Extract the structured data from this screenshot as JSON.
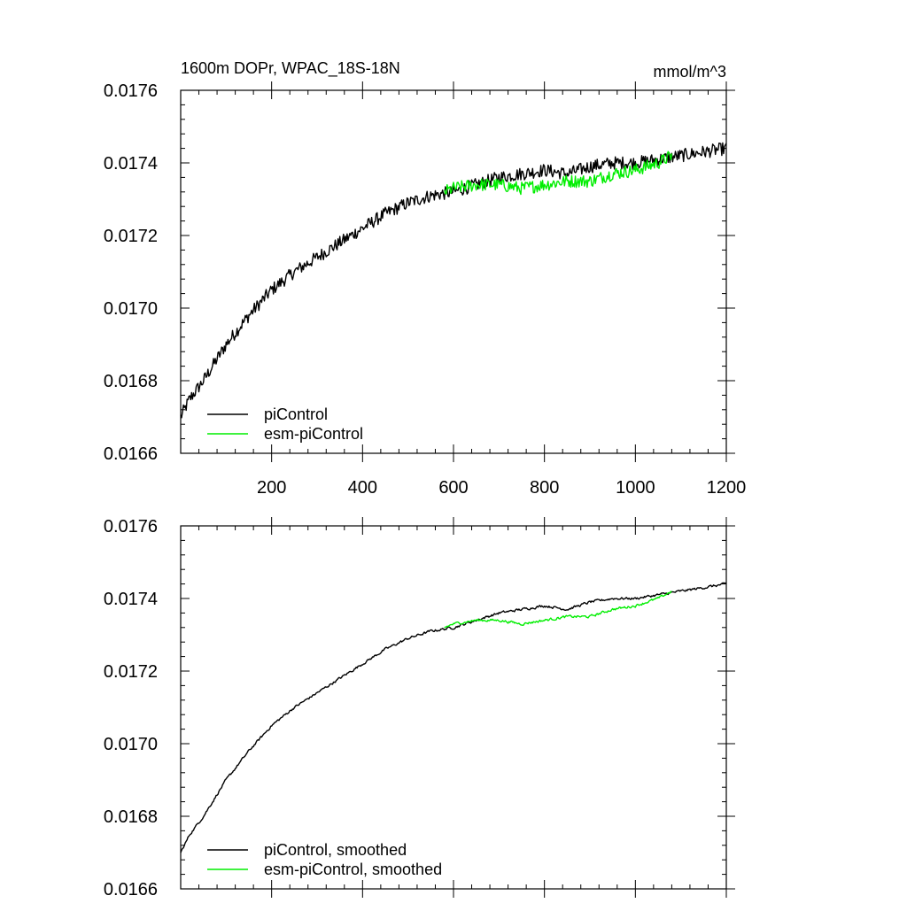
{
  "header": {
    "title": "1600m DOPr, WPAC_18S-18N",
    "units": "mmol/m^3"
  },
  "chart_data": [
    {
      "type": "line",
      "panel": "top",
      "title": "1600m DOPr, WPAC_18S-18N",
      "units_label": "mmol/m^3",
      "xlabel": "",
      "ylabel": "",
      "xlim": [
        0,
        1200
      ],
      "ylim": [
        0.0166,
        0.0176
      ],
      "x_ticks": [
        200,
        400,
        600,
        800,
        1000,
        1200
      ],
      "x_tick_labels": [
        "200",
        "400",
        "600",
        "800",
        "1000",
        "1200"
      ],
      "y_ticks": [
        0.0166,
        0.0168,
        0.017,
        0.0172,
        0.0174,
        0.0176
      ],
      "y_tick_labels": [
        "0.0166",
        "0.0168",
        "0.0170",
        "0.0172",
        "0.0174",
        "0.0176"
      ],
      "grid": false,
      "legend_position": "bottom-left",
      "series": [
        {
          "name": "piControl",
          "color": "#000000",
          "noise": 1.8e-05,
          "x": [
            0,
            20,
            50,
            100,
            150,
            200,
            250,
            300,
            350,
            400,
            450,
            500,
            550,
            600,
            650,
            700,
            750,
            800,
            850,
            900,
            950,
            1000,
            1050,
            1100,
            1150,
            1200
          ],
          "y": [
            0.0167,
            0.01675,
            0.0168,
            0.0169,
            0.01698,
            0.01705,
            0.0171,
            0.01714,
            0.01718,
            0.01722,
            0.01726,
            0.01729,
            0.01731,
            0.01732,
            0.01734,
            0.01736,
            0.01737,
            0.01738,
            0.01737,
            0.01739,
            0.0174,
            0.0174,
            0.01741,
            0.01742,
            0.01743,
            0.01744
          ]
        },
        {
          "name": "esm-piControl",
          "color": "#00ee00",
          "noise": 1.8e-05,
          "x": [
            580,
            600,
            650,
            700,
            750,
            800,
            850,
            900,
            950,
            1000,
            1050,
            1080
          ],
          "y": [
            0.01732,
            0.01733,
            0.01734,
            0.01734,
            0.01733,
            0.01734,
            0.01735,
            0.01735,
            0.01737,
            0.01738,
            0.0174,
            0.01742
          ]
        }
      ]
    },
    {
      "type": "line",
      "panel": "bottom",
      "xlabel": "",
      "ylabel": "",
      "xlim": [
        0,
        1200
      ],
      "ylim": [
        0.0166,
        0.0176
      ],
      "y_ticks": [
        0.0166,
        0.0168,
        0.017,
        0.0172,
        0.0174,
        0.0176
      ],
      "y_tick_labels": [
        "0.0166",
        "0.0168",
        "0.0170",
        "0.0172",
        "0.0174",
        "0.0176"
      ],
      "grid": false,
      "legend_position": "bottom-left",
      "series": [
        {
          "name": "piControl, smoothed",
          "color": "#000000",
          "noise": 6e-06,
          "x": [
            0,
            20,
            50,
            100,
            150,
            200,
            250,
            300,
            350,
            400,
            450,
            500,
            550,
            600,
            650,
            700,
            750,
            800,
            850,
            900,
            950,
            1000,
            1050,
            1100,
            1150,
            1200
          ],
          "y": [
            0.0167,
            0.01675,
            0.0168,
            0.0169,
            0.01698,
            0.01705,
            0.0171,
            0.01714,
            0.01718,
            0.01722,
            0.01726,
            0.01729,
            0.01731,
            0.01732,
            0.01734,
            0.01736,
            0.01737,
            0.01738,
            0.01737,
            0.01739,
            0.0174,
            0.0174,
            0.01741,
            0.01742,
            0.01743,
            0.01744
          ]
        },
        {
          "name": "esm-piControl, smoothed",
          "color": "#00ee00",
          "noise": 6e-06,
          "x": [
            580,
            600,
            650,
            700,
            750,
            800,
            850,
            900,
            950,
            1000,
            1050,
            1080
          ],
          "y": [
            0.01732,
            0.01733,
            0.01734,
            0.01734,
            0.01733,
            0.01734,
            0.01735,
            0.01735,
            0.01737,
            0.01738,
            0.0174,
            0.01742
          ]
        }
      ]
    }
  ]
}
